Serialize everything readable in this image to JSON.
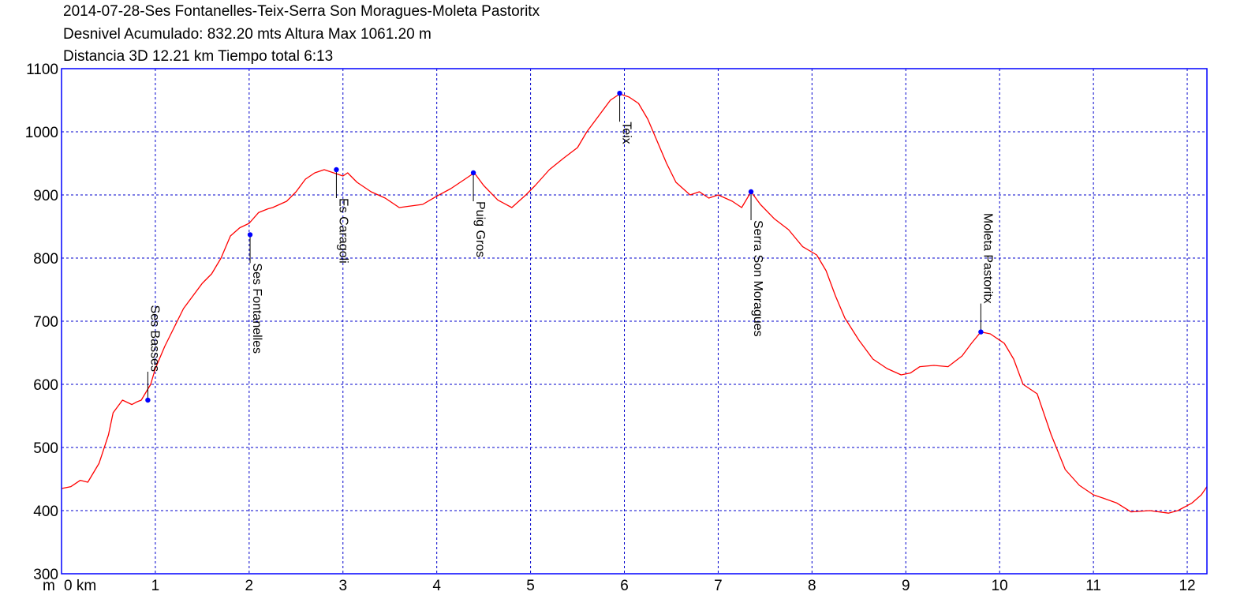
{
  "chart_data": {
    "type": "line",
    "title_lines": [
      "2014-07-28-Ses Fontanelles-Teix-Serra Son Moragues-Moleta Pastoritx",
      "Desnivel Acumulado: 832.20 mts  Altura Max 1061.20 m",
      "Distancia 3D 12.21 km  Tiempo total 6:13"
    ],
    "x_unit_label": "m",
    "xlim": [
      0,
      12.21
    ],
    "ylim": [
      300,
      1100
    ],
    "x_ticks": [
      {
        "value": 0,
        "label": "0 km"
      },
      {
        "value": 1,
        "label": "1"
      },
      {
        "value": 2,
        "label": "2"
      },
      {
        "value": 3,
        "label": "3"
      },
      {
        "value": 4,
        "label": "4"
      },
      {
        "value": 5,
        "label": "5"
      },
      {
        "value": 6,
        "label": "6"
      },
      {
        "value": 7,
        "label": "7"
      },
      {
        "value": 8,
        "label": "8"
      },
      {
        "value": 9,
        "label": "9"
      },
      {
        "value": 10,
        "label": "10"
      },
      {
        "value": 11,
        "label": "11"
      },
      {
        "value": 12,
        "label": "12"
      }
    ],
    "y_ticks": [
      300,
      400,
      500,
      600,
      700,
      800,
      900,
      1000,
      1100
    ],
    "grid": true,
    "colors": {
      "line": "#ff0000",
      "grid": "#0000cc",
      "frame": "#0000ff",
      "marker": "#0000ff"
    },
    "series": [
      {
        "x": [
          0,
          0.1,
          0.2,
          0.28,
          0.4,
          0.5,
          0.55,
          0.65,
          0.75,
          0.8,
          0.85,
          0.95,
          1.0,
          1.1,
          1.2,
          1.3,
          1.4,
          1.5,
          1.6,
          1.7,
          1.8,
          1.9,
          2.0,
          2.1,
          2.2,
          2.25,
          2.4,
          2.5,
          2.6,
          2.7,
          2.8,
          2.9,
          3.0,
          3.05,
          3.15,
          3.3,
          3.45,
          3.6,
          3.7,
          3.85,
          4.0,
          4.15,
          4.3,
          4.4,
          4.5,
          4.65,
          4.8,
          4.95,
          5.05,
          5.2,
          5.35,
          5.5,
          5.6,
          5.75,
          5.85,
          5.95,
          6.05,
          6.15,
          6.25,
          6.35,
          6.45,
          6.55,
          6.7,
          6.8,
          6.9,
          7.0,
          7.15,
          7.25,
          7.35,
          7.45,
          7.6,
          7.75,
          7.9,
          8.05,
          8.15,
          8.25,
          8.35,
          8.5,
          8.65,
          8.8,
          8.95,
          9.05,
          9.15,
          9.3,
          9.45,
          9.6,
          9.7,
          9.8,
          9.9,
          10.05,
          10.15,
          10.25,
          10.4,
          10.55,
          10.7,
          10.85,
          11.0,
          11.1,
          11.25,
          11.4,
          11.6,
          11.8,
          11.9,
          12.05,
          12.15,
          12.21
        ],
        "y": [
          435,
          438,
          448,
          445,
          475,
          520,
          555,
          575,
          568,
          572,
          575,
          600,
          625,
          660,
          690,
          720,
          740,
          760,
          775,
          800,
          835,
          848,
          855,
          872,
          878,
          880,
          890,
          905,
          925,
          935,
          940,
          935,
          930,
          935,
          920,
          905,
          895,
          880,
          882,
          885,
          898,
          910,
          925,
          935,
          915,
          892,
          880,
          900,
          915,
          940,
          958,
          975,
          1000,
          1030,
          1050,
          1060,
          1055,
          1045,
          1020,
          985,
          950,
          920,
          900,
          905,
          895,
          900,
          890,
          880,
          905,
          885,
          862,
          845,
          818,
          805,
          780,
          740,
          705,
          670,
          640,
          625,
          615,
          618,
          628,
          630,
          628,
          645,
          665,
          683,
          680,
          665,
          640,
          600,
          585,
          520,
          465,
          440,
          425,
          420,
          412,
          398,
          400,
          396,
          400,
          412,
          425,
          438
        ]
      }
    ],
    "waypoints": [
      {
        "name": "Ses Basses",
        "x": 0.92,
        "y": 575
      },
      {
        "name": "Ses Fontanelles",
        "x": 2.01,
        "y": 837
      },
      {
        "name": "Es Caragoli",
        "x": 2.93,
        "y": 940
      },
      {
        "name": "Puig Gros",
        "x": 4.39,
        "y": 935
      },
      {
        "name": "Teix",
        "x": 5.95,
        "y": 1061
      },
      {
        "name": "Serra Son Moragues",
        "x": 7.35,
        "y": 905
      },
      {
        "name": "Moleta Pastoritx",
        "x": 9.8,
        "y": 683
      }
    ]
  }
}
